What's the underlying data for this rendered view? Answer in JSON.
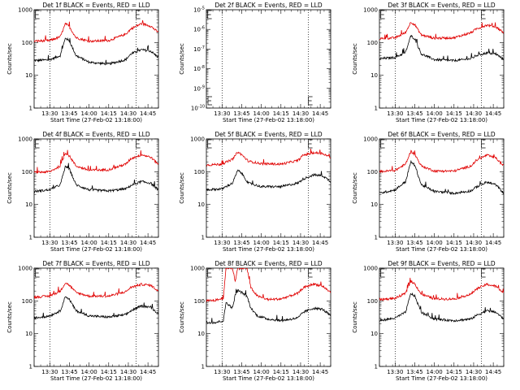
{
  "colors": {
    "events": "#000000",
    "lld": "#e00000",
    "axis": "#000000",
    "background": "#ffffff"
  },
  "chart_data": [
    {
      "type": "line",
      "title": "Det 1f BLACK = Events, RED = LLD",
      "xlabel": "Start Time (27-Feb-02 13:18:00)",
      "ylabel": "Counts/sec",
      "xlim": [
        "13:18",
        "14:53"
      ],
      "ylim": [
        1,
        1000
      ],
      "yscale": "log",
      "xticks": [
        "13:30",
        "13:45",
        "14:00",
        "14:15",
        "14:30",
        "14:45"
      ],
      "yticks": [
        "1",
        "10",
        "100",
        "1000"
      ],
      "vlines": [
        "13:30",
        "14:36"
      ],
      "markers": [
        "13:19",
        "14:36"
      ],
      "x": [
        "13:18",
        "13:30",
        "13:38",
        "13:42",
        "13:45",
        "13:50",
        "14:00",
        "14:15",
        "14:28",
        "14:32",
        "14:40",
        "14:47",
        "14:53"
      ],
      "series": [
        {
          "name": "BLACK = Events",
          "color": "black",
          "values": [
            28,
            30,
            40,
            140,
            110,
            40,
            25,
            22,
            30,
            45,
            60,
            55,
            35
          ]
        },
        {
          "name": "RED = LLD",
          "color": "red",
          "values": [
            110,
            115,
            150,
            380,
            300,
            140,
            110,
            115,
            180,
            260,
            380,
            320,
            200
          ]
        }
      ]
    },
    {
      "type": "line",
      "title": "Det 2f BLACK = Events, RED = LLD",
      "xlabel": "Start Time (27-Feb-02 13:18:00)",
      "ylabel": "Counts/sec",
      "xlim": [
        "13:18",
        "14:53"
      ],
      "ylim": [
        1e-10,
        1e-05
      ],
      "yscale": "log",
      "xticks": [
        "13:30",
        "13:45",
        "14:00",
        "14:15",
        "14:30",
        "14:45"
      ],
      "yticks": [
        "10^-10",
        "10^-9",
        "10^-8",
        "10^-7",
        "10^-6",
        "10^-5"
      ],
      "vlines": [
        "13:30",
        "14:36"
      ],
      "markers": [
        "13:19",
        "14:36"
      ],
      "series": []
    },
    {
      "type": "line",
      "title": "Det 3f BLACK = Events, RED = LLD",
      "xlabel": "Start Time (27-Feb-02 13:18:00)",
      "ylabel": "Counts/sec",
      "xlim": [
        "13:18",
        "14:53"
      ],
      "ylim": [
        1,
        1000
      ],
      "yscale": "log",
      "xticks": [
        "13:30",
        "13:45",
        "14:00",
        "14:15",
        "14:30",
        "14:45"
      ],
      "yticks": [
        "1",
        "10",
        "100",
        "1000"
      ],
      "vlines": [
        "13:30",
        "14:36"
      ],
      "markers": [
        "13:19",
        "14:36"
      ],
      "x": [
        "13:18",
        "13:30",
        "13:38",
        "13:42",
        "13:45",
        "13:50",
        "14:00",
        "14:15",
        "14:28",
        "14:32",
        "14:40",
        "14:47",
        "14:53"
      ],
      "series": [
        {
          "name": "BLACK = Events",
          "color": "black",
          "values": [
            32,
            35,
            50,
            160,
            130,
            45,
            30,
            28,
            32,
            40,
            48,
            45,
            30
          ]
        },
        {
          "name": "RED = LLD",
          "color": "red",
          "values": [
            130,
            140,
            200,
            420,
            350,
            170,
            135,
            140,
            200,
            260,
            340,
            300,
            200
          ]
        }
      ]
    },
    {
      "type": "line",
      "title": "Det 4f BLACK = Events, RED = LLD",
      "xlabel": "Start Time (27-Feb-02 13:18:00)",
      "ylabel": "Counts/sec",
      "xlim": [
        "13:18",
        "14:53"
      ],
      "ylim": [
        1,
        1000
      ],
      "yscale": "log",
      "xticks": [
        "13:30",
        "13:45",
        "14:00",
        "14:15",
        "14:30",
        "14:45"
      ],
      "yticks": [
        "1",
        "10",
        "100",
        "1000"
      ],
      "vlines": [
        "13:30",
        "14:36"
      ],
      "markers": [
        "13:19",
        "14:36"
      ],
      "x": [
        "13:18",
        "13:30",
        "13:38",
        "13:42",
        "13:45",
        "13:50",
        "14:00",
        "14:15",
        "14:28",
        "14:32",
        "14:40",
        "14:47",
        "14:53"
      ],
      "series": [
        {
          "name": "BLACK = Events",
          "color": "black",
          "values": [
            25,
            28,
            40,
            150,
            120,
            40,
            28,
            26,
            30,
            38,
            50,
            45,
            28
          ]
        },
        {
          "name": "RED = LLD",
          "color": "red",
          "values": [
            95,
            100,
            150,
            380,
            300,
            150,
            110,
            115,
            170,
            250,
            330,
            280,
            170
          ]
        }
      ]
    },
    {
      "type": "line",
      "title": "Det 5f BLACK = Events, RED = LLD",
      "xlabel": "Start Time (27-Feb-02 13:18:00)",
      "ylabel": "Counts/sec",
      "xlim": [
        "13:18",
        "14:53"
      ],
      "ylim": [
        1,
        1000
      ],
      "yscale": "log",
      "xticks": [
        "13:30",
        "13:45",
        "14:00",
        "14:15",
        "14:30",
        "14:45"
      ],
      "yticks": [
        "1",
        "10",
        "100",
        "1000"
      ],
      "vlines": [
        "13:30",
        "14:36"
      ],
      "markers": [
        "13:19",
        "14:36"
      ],
      "x": [
        "13:18",
        "13:30",
        "13:38",
        "13:42",
        "13:45",
        "13:50",
        "14:00",
        "14:15",
        "14:28",
        "14:32",
        "14:40",
        "14:47",
        "14:53"
      ],
      "series": [
        {
          "name": "BLACK = Events",
          "color": "black",
          "values": [
            28,
            30,
            45,
            110,
            90,
            45,
            35,
            35,
            45,
            60,
            80,
            75,
            50
          ]
        },
        {
          "name": "RED = LLD",
          "color": "red",
          "values": [
            160,
            170,
            240,
            400,
            330,
            210,
            175,
            170,
            220,
            320,
            380,
            360,
            270
          ]
        }
      ]
    },
    {
      "type": "line",
      "title": "Det 6f BLACK = Events, RED = LLD",
      "xlabel": "Start Time (27-Feb-02 13:18:00)",
      "ylabel": "Counts/sec",
      "xlim": [
        "13:18",
        "14:53"
      ],
      "ylim": [
        1,
        1000
      ],
      "yscale": "log",
      "xticks": [
        "13:30",
        "13:45",
        "14:00",
        "14:15",
        "14:30",
        "14:45"
      ],
      "yticks": [
        "1",
        "10",
        "100",
        "1000"
      ],
      "vlines": [
        "13:30",
        "14:36"
      ],
      "markers": [
        "13:19",
        "14:36"
      ],
      "x": [
        "13:18",
        "13:30",
        "13:38",
        "13:42",
        "13:45",
        "13:50",
        "14:00",
        "14:15",
        "14:28",
        "14:32",
        "14:40",
        "14:47",
        "14:53"
      ],
      "series": [
        {
          "name": "BLACK = Events",
          "color": "black",
          "values": [
            22,
            28,
            50,
            200,
            160,
            40,
            25,
            22,
            26,
            34,
            48,
            40,
            22
          ]
        },
        {
          "name": "RED = LLD",
          "color": "red",
          "values": [
            100,
            110,
            170,
            420,
            340,
            150,
            105,
            105,
            150,
            220,
            320,
            260,
            150
          ]
        }
      ]
    },
    {
      "type": "line",
      "title": "Det 7f BLACK = Events, RED = LLD",
      "xlabel": "Start Time (27-Feb-02 13:18:00)",
      "ylabel": "Counts/sec",
      "xlim": [
        "13:18",
        "14:53"
      ],
      "ylim": [
        1,
        1000
      ],
      "yscale": "log",
      "xticks": [
        "13:30",
        "13:45",
        "14:00",
        "14:15",
        "14:30",
        "14:45"
      ],
      "yticks": [
        "1",
        "10",
        "100",
        "1000"
      ],
      "vlines": [
        "13:30",
        "14:36"
      ],
      "markers": [
        "13:19",
        "14:36"
      ],
      "x": [
        "13:18",
        "13:30",
        "13:38",
        "13:42",
        "13:45",
        "13:50",
        "14:00",
        "14:15",
        "14:28",
        "14:32",
        "14:40",
        "14:47",
        "14:53"
      ],
      "series": [
        {
          "name": "BLACK = Events",
          "color": "black",
          "values": [
            30,
            35,
            50,
            140,
            110,
            50,
            35,
            32,
            38,
            50,
            70,
            65,
            40
          ]
        },
        {
          "name": "RED = LLD",
          "color": "red",
          "values": [
            130,
            140,
            200,
            360,
            300,
            180,
            140,
            140,
            190,
            260,
            320,
            300,
            200
          ]
        }
      ]
    },
    {
      "type": "line",
      "title": "Det 8f BLACK = Events, RED = LLD",
      "xlabel": "Start Time (27-Feb-02 13:18:00)",
      "ylabel": "Counts/sec",
      "xlim": [
        "13:18",
        "14:53"
      ],
      "ylim": [
        1,
        1000
      ],
      "yscale": "log",
      "xticks": [
        "13:30",
        "13:45",
        "14:00",
        "14:15",
        "14:30",
        "14:45"
      ],
      "yticks": [
        "1",
        "10",
        "100",
        "1000"
      ],
      "vlines": [
        "13:30",
        "14:36"
      ],
      "markers": [
        "13:19",
        "14:36"
      ],
      "x": [
        "13:18",
        "13:25",
        "13:31",
        "13:33",
        "13:38",
        "13:40",
        "13:42",
        "13:45",
        "13:49",
        "13:52",
        "13:57",
        "14:05",
        "14:15",
        "14:28",
        "14:32",
        "14:40",
        "14:47",
        "14:53"
      ],
      "series": [
        {
          "name": "BLACK = Events",
          "color": "black",
          "values": [
            22,
            22,
            25,
            90,
            60,
            150,
            210,
            180,
            140,
            60,
            35,
            28,
            25,
            30,
            45,
            60,
            55,
            35
          ]
        },
        {
          "name": "RED = LLD",
          "color": "red",
          "values": [
            100,
            105,
            120,
            1000,
            1000,
            400,
            1000,
            1000,
            1000,
            250,
            140,
            110,
            115,
            170,
            250,
            330,
            280,
            180
          ]
        }
      ]
    },
    {
      "type": "line",
      "title": "Det 9f BLACK = Events, RED = LLD",
      "xlabel": "Start Time (27-Feb-02 13:18:00)",
      "ylabel": "Counts/sec",
      "xlim": [
        "13:18",
        "14:53"
      ],
      "ylim": [
        1,
        1000
      ],
      "yscale": "log",
      "xticks": [
        "13:30",
        "13:45",
        "14:00",
        "14:15",
        "14:30",
        "14:45"
      ],
      "yticks": [
        "1",
        "10",
        "100",
        "1000"
      ],
      "vlines": [
        "13:30",
        "14:36"
      ],
      "markers": [
        "13:19",
        "14:36"
      ],
      "x": [
        "13:18",
        "13:30",
        "13:38",
        "13:42",
        "13:45",
        "13:50",
        "14:00",
        "14:15",
        "14:28",
        "14:32",
        "14:40",
        "14:47",
        "14:53"
      ],
      "series": [
        {
          "name": "BLACK = Events",
          "color": "black",
          "values": [
            25,
            30,
            45,
            170,
            140,
            45,
            28,
            25,
            28,
            36,
            50,
            45,
            28
          ]
        },
        {
          "name": "RED = LLD",
          "color": "red",
          "values": [
            110,
            120,
            170,
            400,
            330,
            160,
            115,
            115,
            160,
            230,
            320,
            280,
            170
          ]
        }
      ]
    }
  ]
}
